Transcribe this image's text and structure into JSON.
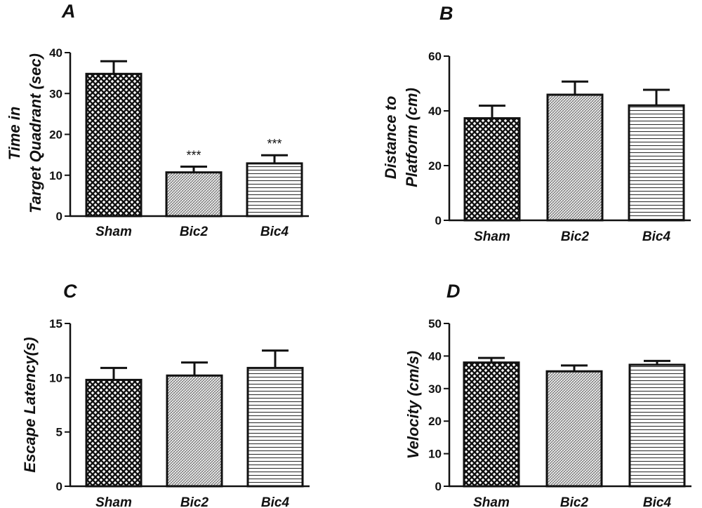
{
  "chart_data": [
    {
      "panel": "A",
      "type": "bar",
      "ylabel_lines": [
        "Time in",
        "Target Quadrant (sec)"
      ],
      "categories": [
        "Sham",
        "Bic2",
        "Bic4"
      ],
      "values": [
        34.8,
        10.7,
        12.9
      ],
      "errors": [
        3.1,
        1.4,
        2.0
      ],
      "annotations": [
        "",
        "***",
        "***"
      ],
      "ylim": [
        0,
        40
      ],
      "yticks": [
        0,
        10,
        20,
        30,
        40
      ],
      "patterns": [
        "crosshatch",
        "fine-dots",
        "horizontal-lines"
      ],
      "grid": false,
      "legend": "none"
    },
    {
      "panel": "B",
      "type": "bar",
      "ylabel_lines": [
        "Distance to",
        "Platform (cm)"
      ],
      "categories": [
        "Sham",
        "Bic2",
        "Bic4"
      ],
      "values": [
        37.3,
        45.9,
        42.0
      ],
      "errors": [
        4.6,
        4.8,
        5.7
      ],
      "annotations": [
        "",
        "",
        ""
      ],
      "ylim": [
        0,
        60
      ],
      "yticks": [
        0,
        20,
        40,
        60
      ],
      "patterns": [
        "crosshatch",
        "fine-dots",
        "horizontal-lines"
      ],
      "grid": false,
      "legend": "none"
    },
    {
      "panel": "C",
      "type": "bar",
      "ylabel_lines": [
        "Escape Latency(s)"
      ],
      "categories": [
        "Sham",
        "Bic2",
        "Bic4"
      ],
      "values": [
        9.8,
        10.2,
        10.9
      ],
      "errors": [
        1.1,
        1.2,
        1.6
      ],
      "annotations": [
        "",
        "",
        ""
      ],
      "ylim": [
        0,
        15
      ],
      "yticks": [
        0,
        5,
        10,
        15
      ],
      "patterns": [
        "crosshatch",
        "fine-dots",
        "horizontal-lines"
      ],
      "grid": false,
      "legend": "none"
    },
    {
      "panel": "D",
      "type": "bar",
      "ylabel_lines": [
        "Velocity (cm/s)"
      ],
      "categories": [
        "Sham",
        "Bic2",
        "Bic4"
      ],
      "values": [
        38.0,
        35.3,
        37.3
      ],
      "errors": [
        1.4,
        1.8,
        1.2
      ],
      "annotations": [
        "",
        "",
        ""
      ],
      "ylim": [
        0,
        50
      ],
      "yticks": [
        0,
        10,
        20,
        30,
        40,
        50
      ],
      "patterns": [
        "crosshatch",
        "fine-dots",
        "horizontal-lines"
      ],
      "grid": false,
      "legend": "none"
    }
  ],
  "colors": {
    "ink": "#111111",
    "bar_fill_base": "#ffffff"
  }
}
